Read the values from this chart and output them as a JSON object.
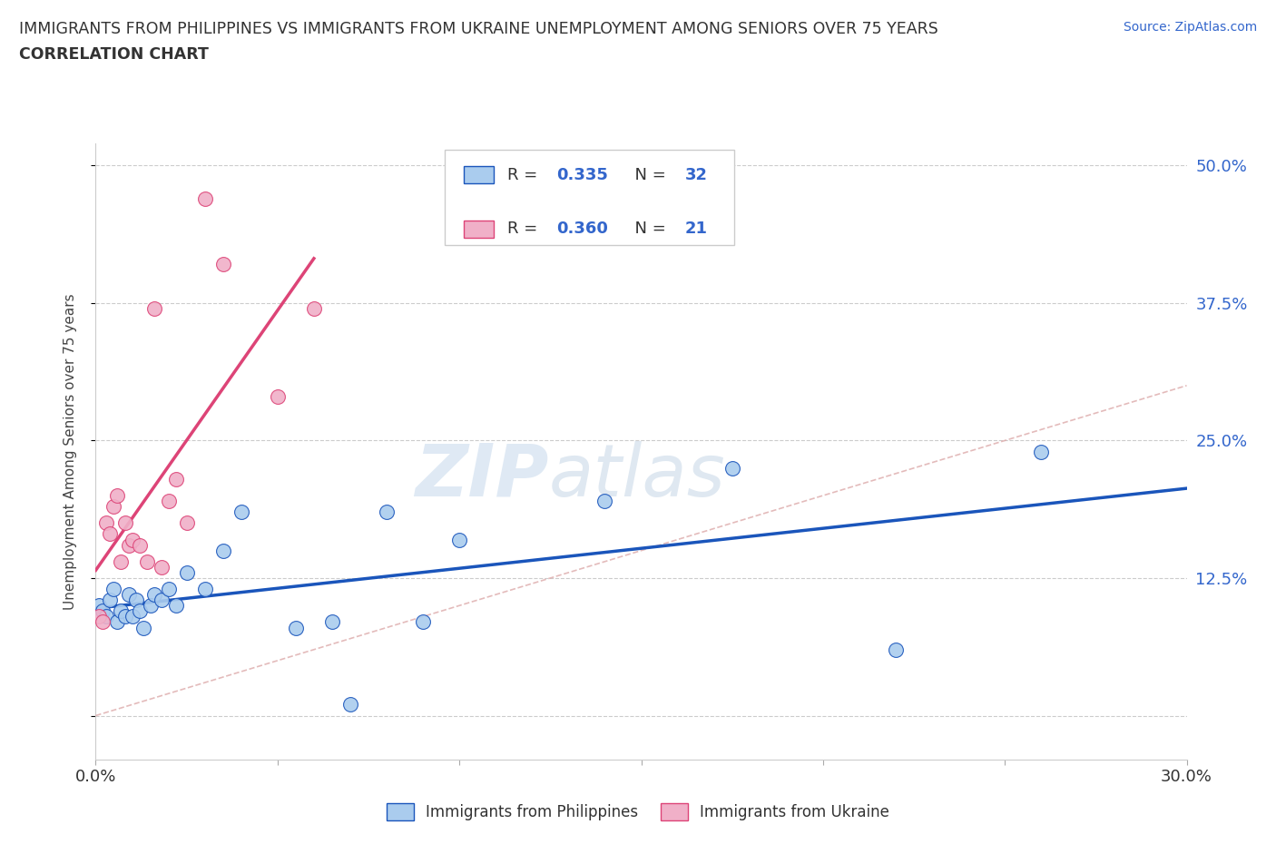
{
  "title_line1": "IMMIGRANTS FROM PHILIPPINES VS IMMIGRANTS FROM UKRAINE UNEMPLOYMENT AMONG SENIORS OVER 75 YEARS",
  "title_line2": "CORRELATION CHART",
  "source_text": "Source: ZipAtlas.com",
  "ylabel": "Unemployment Among Seniors over 75 years",
  "xmin": 0.0,
  "xmax": 0.3,
  "ymin": -0.04,
  "ymax": 0.52,
  "xticks": [
    0.0,
    0.05,
    0.1,
    0.15,
    0.2,
    0.25,
    0.3
  ],
  "xtick_labels": [
    "0.0%",
    "",
    "",
    "",
    "",
    "",
    "30.0%"
  ],
  "yticks": [
    0.0,
    0.125,
    0.25,
    0.375,
    0.5
  ],
  "ytick_labels_right": [
    "",
    "12.5%",
    "25.0%",
    "37.5%",
    "50.0%"
  ],
  "watermark_zip": "ZIP",
  "watermark_atlas": "atlas",
  "color_philippines": "#aaccee",
  "color_ukraine": "#f0b0c8",
  "line_color_philippines": "#1a55bb",
  "line_color_ukraine": "#dd4477",
  "line_color_diagonal": "#ddaaaa",
  "philippines_x": [
    0.001,
    0.002,
    0.003,
    0.004,
    0.005,
    0.006,
    0.007,
    0.008,
    0.009,
    0.01,
    0.011,
    0.012,
    0.013,
    0.015,
    0.016,
    0.018,
    0.02,
    0.022,
    0.025,
    0.03,
    0.035,
    0.04,
    0.055,
    0.065,
    0.07,
    0.08,
    0.09,
    0.1,
    0.14,
    0.175,
    0.22,
    0.26
  ],
  "philippines_y": [
    0.1,
    0.095,
    0.09,
    0.105,
    0.115,
    0.085,
    0.095,
    0.09,
    0.11,
    0.09,
    0.105,
    0.095,
    0.08,
    0.1,
    0.11,
    0.105,
    0.115,
    0.1,
    0.13,
    0.115,
    0.15,
    0.185,
    0.08,
    0.085,
    0.01,
    0.185,
    0.085,
    0.16,
    0.195,
    0.225,
    0.06,
    0.24
  ],
  "ukraine_x": [
    0.001,
    0.002,
    0.003,
    0.004,
    0.005,
    0.006,
    0.007,
    0.008,
    0.009,
    0.01,
    0.012,
    0.014,
    0.016,
    0.018,
    0.02,
    0.022,
    0.025,
    0.03,
    0.035,
    0.05,
    0.06
  ],
  "ukraine_y": [
    0.09,
    0.085,
    0.175,
    0.165,
    0.19,
    0.2,
    0.14,
    0.175,
    0.155,
    0.16,
    0.155,
    0.14,
    0.37,
    0.135,
    0.195,
    0.215,
    0.175,
    0.47,
    0.41,
    0.29,
    0.37
  ]
}
